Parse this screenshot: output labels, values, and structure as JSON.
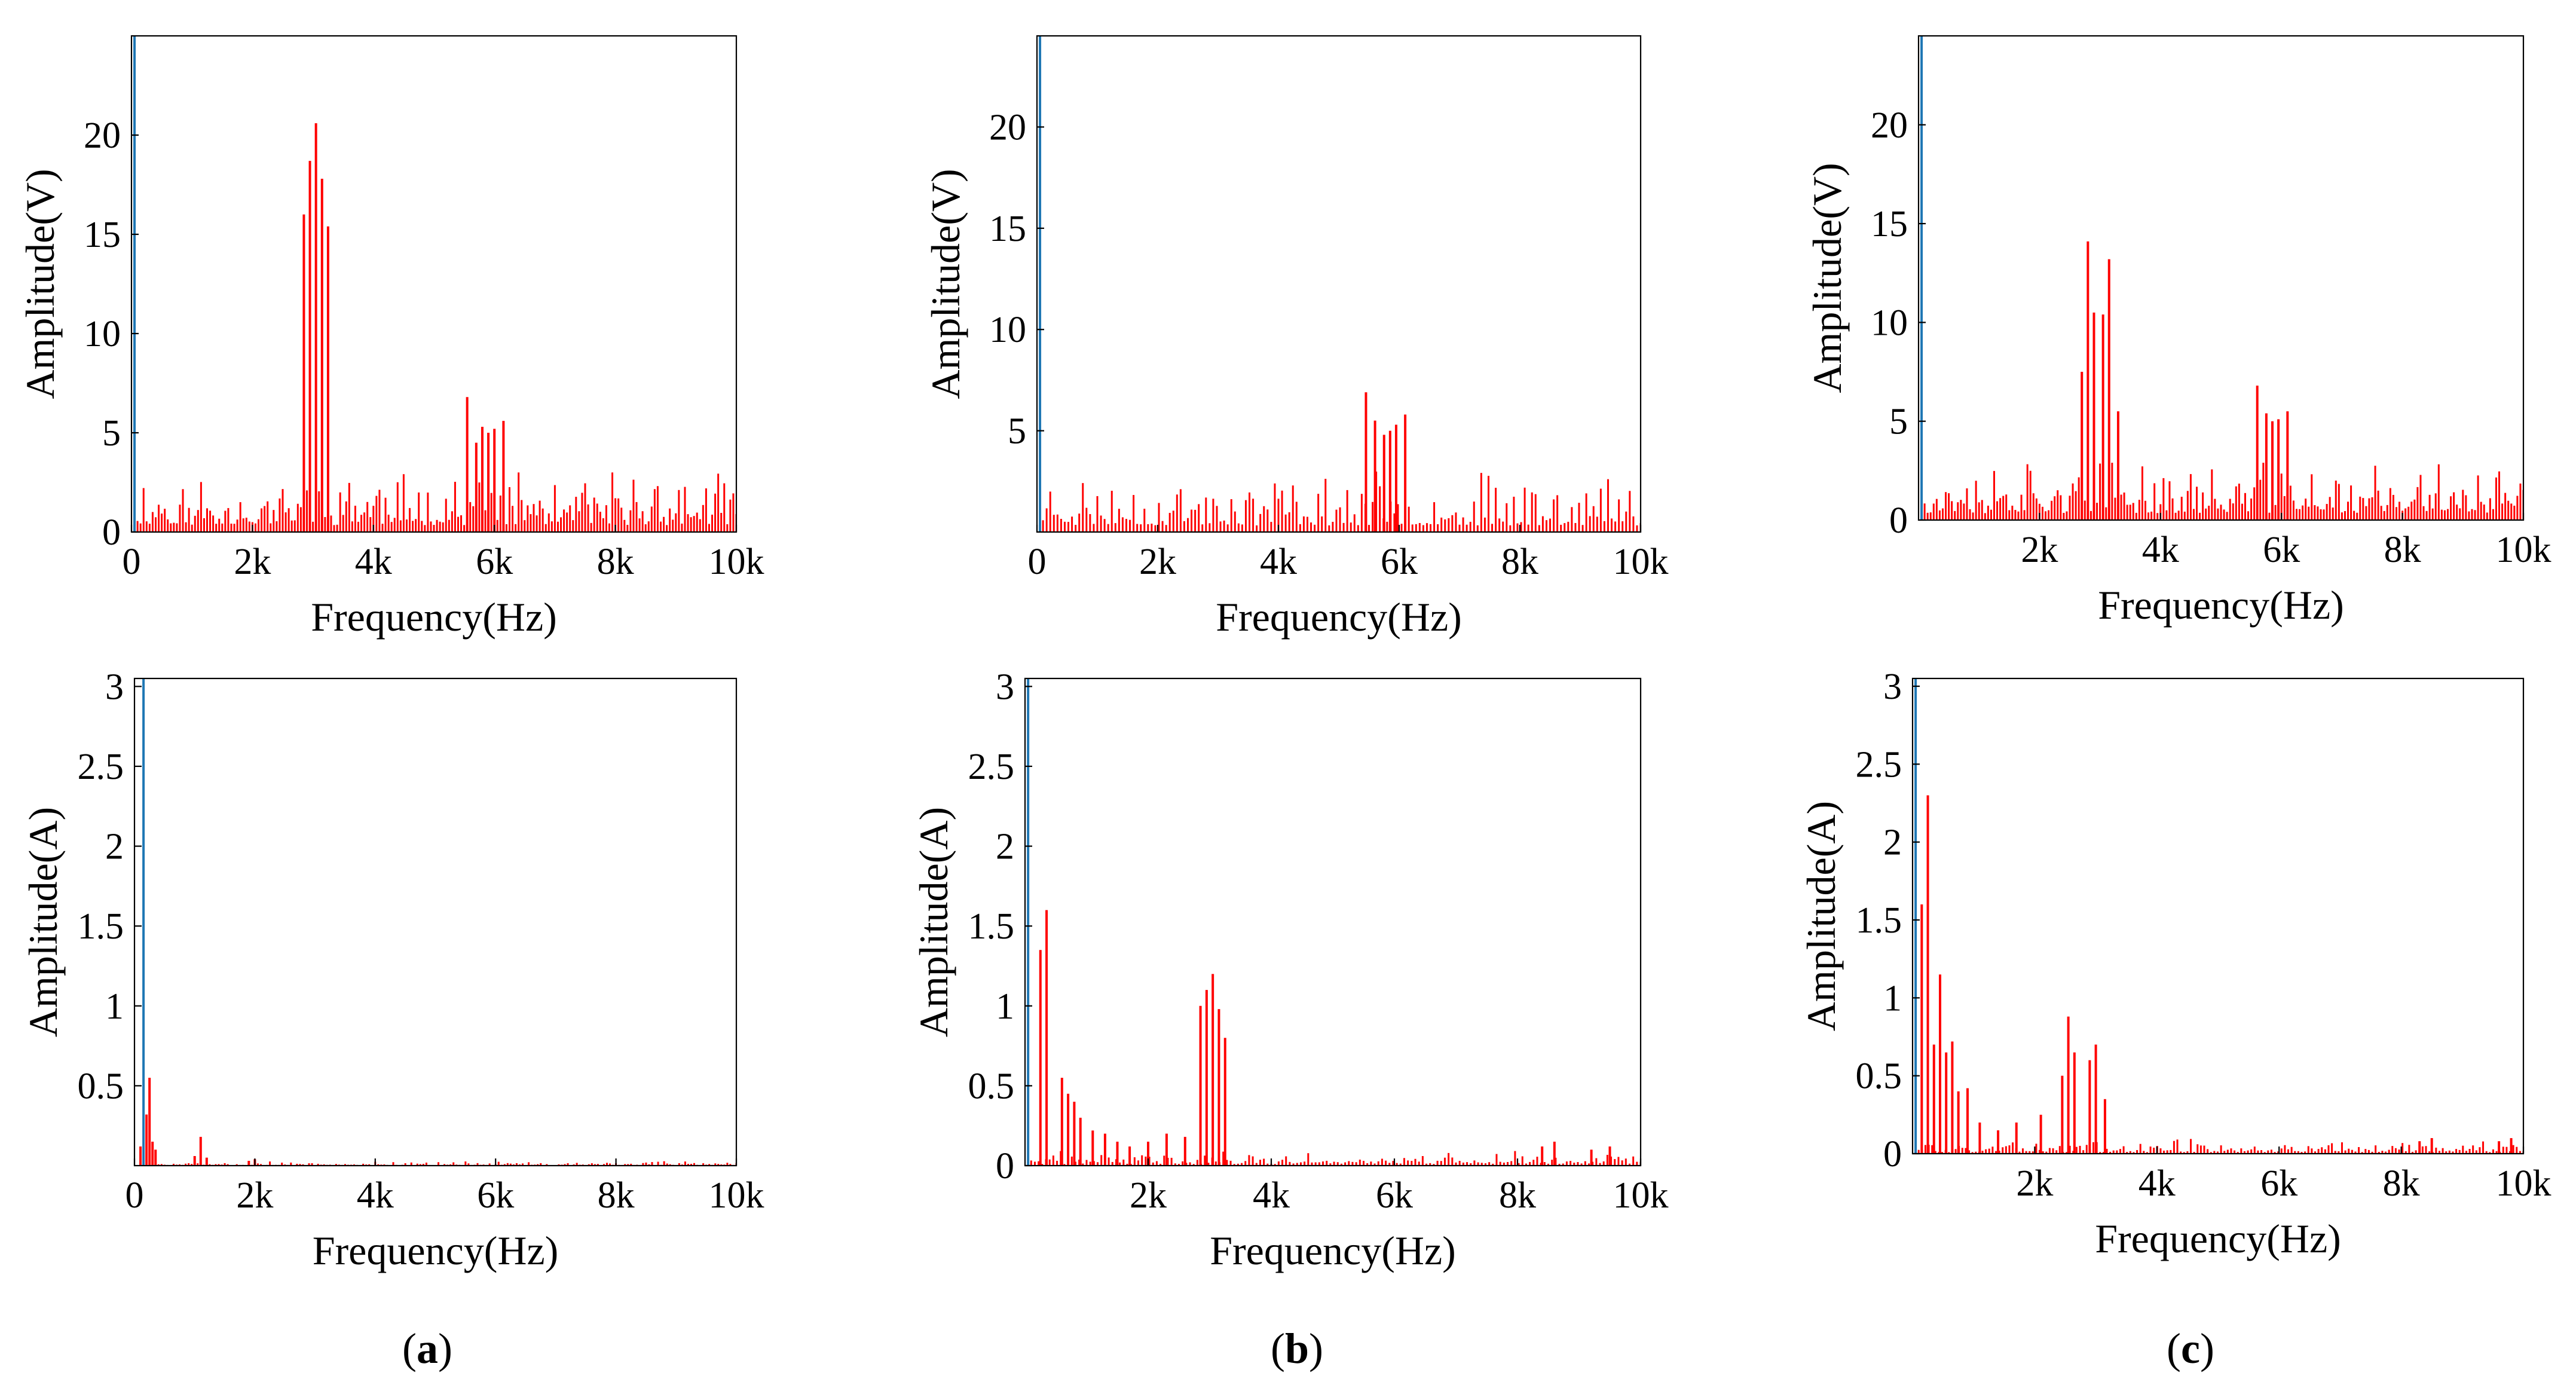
{
  "colors": {
    "spectrum": "#ff0000",
    "fundamental": "#1f77b4",
    "axis": "#000000"
  },
  "chart_data": [
    {
      "id": "a-top",
      "type": "bar",
      "panel": "a",
      "row": "top",
      "xlabel": "Frequency(Hz)",
      "ylabel": "Amplitude(V)",
      "xlim": [
        0,
        10000
      ],
      "ylim": [
        0,
        25
      ],
      "xtick_values": [
        0,
        2000,
        4000,
        6000,
        8000,
        10000
      ],
      "xtick_labels": [
        "0",
        "2k",
        "4k",
        "6k",
        "8k",
        "10k"
      ],
      "ytick_values": [
        0,
        5,
        10,
        15,
        20
      ],
      "ytick_labels": [
        "0",
        "5",
        "10",
        "15",
        "20"
      ],
      "fundamental": {
        "x": 50,
        "y": 230
      },
      "noise": {
        "level": 1.4,
        "max": 3.0,
        "from": 100,
        "to": 10000,
        "step": 50,
        "seed": 11
      },
      "peaks": [
        [
          2850,
          16.0
        ],
        [
          2950,
          18.7
        ],
        [
          3050,
          20.6
        ],
        [
          3150,
          17.8
        ],
        [
          3250,
          15.4
        ],
        [
          5550,
          6.8
        ],
        [
          5700,
          4.5
        ],
        [
          5800,
          5.3
        ],
        [
          5900,
          5.0
        ],
        [
          6000,
          5.2
        ],
        [
          6150,
          5.6
        ]
      ]
    },
    {
      "id": "b-top",
      "type": "bar",
      "panel": "b",
      "row": "top",
      "xlabel": "Frequency(Hz)",
      "ylabel": "Amplitude(V)",
      "xlim": [
        0,
        10000
      ],
      "ylim": [
        0,
        24.5
      ],
      "xtick_values": [
        0,
        2000,
        4000,
        6000,
        8000,
        10000
      ],
      "xtick_labels": [
        "0",
        "2k",
        "4k",
        "6k",
        "8k",
        "10k"
      ],
      "ytick_values": [
        5,
        10,
        15,
        20
      ],
      "ytick_labels": [
        "5",
        "10",
        "15",
        "20"
      ],
      "fundamental": {
        "x": 50,
        "y": 230
      },
      "noise": {
        "level": 1.3,
        "max": 3.0,
        "from": 100,
        "to": 10000,
        "step": 60,
        "seed": 23
      },
      "peaks": [
        [
          5450,
          6.9
        ],
        [
          5600,
          5.5
        ],
        [
          5750,
          4.8
        ],
        [
          5850,
          5.0
        ],
        [
          5950,
          5.3
        ],
        [
          6100,
          5.8
        ]
      ]
    },
    {
      "id": "c-top",
      "type": "bar",
      "panel": "c",
      "row": "top",
      "xlabel": "Frequency(Hz)",
      "ylabel": "Amplitude(V)",
      "xlim": [
        0,
        10000
      ],
      "ylim": [
        0,
        24.5
      ],
      "xtick_values": [
        2000,
        4000,
        6000,
        8000,
        10000
      ],
      "xtick_labels": [
        "2k",
        "4k",
        "6k",
        "8k",
        "10k"
      ],
      "ytick_values": [
        0,
        5,
        10,
        15,
        20
      ],
      "ytick_labels": [
        "0",
        "5",
        "10",
        "15",
        "20"
      ],
      "fundamental": {
        "x": 50,
        "y": 230
      },
      "noise": {
        "level": 1.4,
        "max": 2.9,
        "from": 100,
        "to": 10000,
        "step": 50,
        "seed": 37
      },
      "peaks": [
        [
          2700,
          7.5
        ],
        [
          2800,
          14.1
        ],
        [
          2900,
          10.5
        ],
        [
          3050,
          10.4
        ],
        [
          3150,
          13.2
        ],
        [
          3300,
          5.5
        ],
        [
          5600,
          6.8
        ],
        [
          5750,
          5.4
        ],
        [
          5850,
          5.0
        ],
        [
          5950,
          5.1
        ],
        [
          6100,
          5.5
        ]
      ]
    },
    {
      "id": "a-bottom",
      "type": "bar",
      "panel": "a",
      "row": "bottom",
      "xlabel": "Frequency(Hz)",
      "ylabel": "Amplitude(A)",
      "xlim": [
        0,
        10000
      ],
      "ylim": [
        0,
        3.05
      ],
      "xtick_values": [
        0,
        2000,
        4000,
        6000,
        8000,
        10000
      ],
      "xtick_labels": [
        "0",
        "2k",
        "4k",
        "6k",
        "8k",
        "10k"
      ],
      "ytick_values": [
        0.5,
        1,
        1.5,
        2,
        2.5,
        3
      ],
      "ytick_labels": [
        "0.5",
        "1",
        "1.5",
        "2",
        "2.5",
        "3"
      ],
      "fundamental": {
        "x": 150,
        "y": 28
      },
      "noise": {
        "level": 0.012,
        "max": 0.03,
        "from": 100,
        "to": 10000,
        "step": 50,
        "seed": 5
      },
      "peaks": [
        [
          100,
          0.12
        ],
        [
          200,
          0.32
        ],
        [
          250,
          0.55
        ],
        [
          300,
          0.15
        ],
        [
          350,
          0.1
        ],
        [
          1000,
          0.06
        ],
        [
          1100,
          0.18
        ],
        [
          1200,
          0.05
        ],
        [
          1900,
          0.03
        ],
        [
          2000,
          0.04
        ]
      ]
    },
    {
      "id": "b-bottom",
      "type": "bar",
      "panel": "b",
      "row": "bottom",
      "xlabel": "Frequency(Hz)",
      "ylabel": "Amplitude(A)",
      "xlim": [
        0,
        10000
      ],
      "ylim": [
        0,
        3.05
      ],
      "xtick_values": [
        2000,
        4000,
        6000,
        8000,
        10000
      ],
      "xtick_labels": [
        "2k",
        "4k",
        "6k",
        "8k",
        "10k"
      ],
      "ytick_values": [
        0,
        0.5,
        1,
        1.5,
        2,
        2.5,
        3
      ],
      "ytick_labels": [
        "0",
        "0.5",
        "1",
        "1.5",
        "2",
        "2.5",
        "3"
      ],
      "fundamental": {
        "x": 50,
        "y": 28
      },
      "noise": {
        "level": 0.04,
        "max": 0.1,
        "from": 100,
        "to": 10000,
        "step": 60,
        "seed": 41
      },
      "peaks": [
        [
          250,
          1.35
        ],
        [
          350,
          1.6
        ],
        [
          600,
          0.55
        ],
        [
          700,
          0.45
        ],
        [
          800,
          0.4
        ],
        [
          900,
          0.3
        ],
        [
          1100,
          0.22
        ],
        [
          1300,
          0.2
        ],
        [
          1500,
          0.15
        ],
        [
          1700,
          0.12
        ],
        [
          2000,
          0.15
        ],
        [
          2300,
          0.2
        ],
        [
          2600,
          0.18
        ],
        [
          2850,
          1.0
        ],
        [
          2950,
          1.1
        ],
        [
          3050,
          1.2
        ],
        [
          3150,
          0.98
        ],
        [
          3250,
          0.8
        ],
        [
          8400,
          0.12
        ],
        [
          8600,
          0.15
        ],
        [
          9200,
          0.1
        ],
        [
          9500,
          0.12
        ]
      ]
    },
    {
      "id": "c-bottom",
      "type": "bar",
      "panel": "c",
      "row": "bottom",
      "xlabel": "Frequency(Hz)",
      "ylabel": "Amplitude(A)",
      "xlim": [
        0,
        10000
      ],
      "ylim": [
        0,
        3.05
      ],
      "xtick_values": [
        2000,
        4000,
        6000,
        8000,
        10000
      ],
      "xtick_labels": [
        "2k",
        "4k",
        "6k",
        "8k",
        "10k"
      ],
      "ytick_values": [
        0,
        0.5,
        1,
        1.5,
        2,
        2.5,
        3
      ],
      "ytick_labels": [
        "0",
        "0.5",
        "1",
        "1.5",
        "2",
        "2.5",
        "3"
      ],
      "fundamental": {
        "x": 50,
        "y": 28
      },
      "noise": {
        "level": 0.04,
        "max": 0.1,
        "from": 100,
        "to": 10000,
        "step": 55,
        "seed": 59
      },
      "peaks": [
        [
          150,
          1.6
        ],
        [
          250,
          2.3
        ],
        [
          350,
          0.7
        ],
        [
          450,
          1.15
        ],
        [
          550,
          0.65
        ],
        [
          650,
          0.72
        ],
        [
          750,
          0.4
        ],
        [
          900,
          0.42
        ],
        [
          1100,
          0.2
        ],
        [
          1400,
          0.15
        ],
        [
          1700,
          0.2
        ],
        [
          2100,
          0.25
        ],
        [
          2450,
          0.5
        ],
        [
          2550,
          0.88
        ],
        [
          2650,
          0.65
        ],
        [
          2900,
          0.6
        ],
        [
          3000,
          0.7
        ],
        [
          3150,
          0.35
        ],
        [
          8300,
          0.08
        ],
        [
          8500,
          0.1
        ],
        [
          9600,
          0.08
        ],
        [
          9800,
          0.1
        ]
      ]
    }
  ],
  "panel_labels": [
    {
      "id": "a",
      "open": "(",
      "letter": "a",
      "close": ")"
    },
    {
      "id": "b",
      "open": "(",
      "letter": "b",
      "close": ")"
    },
    {
      "id": "c",
      "open": "(",
      "letter": "c",
      "close": ")"
    }
  ]
}
